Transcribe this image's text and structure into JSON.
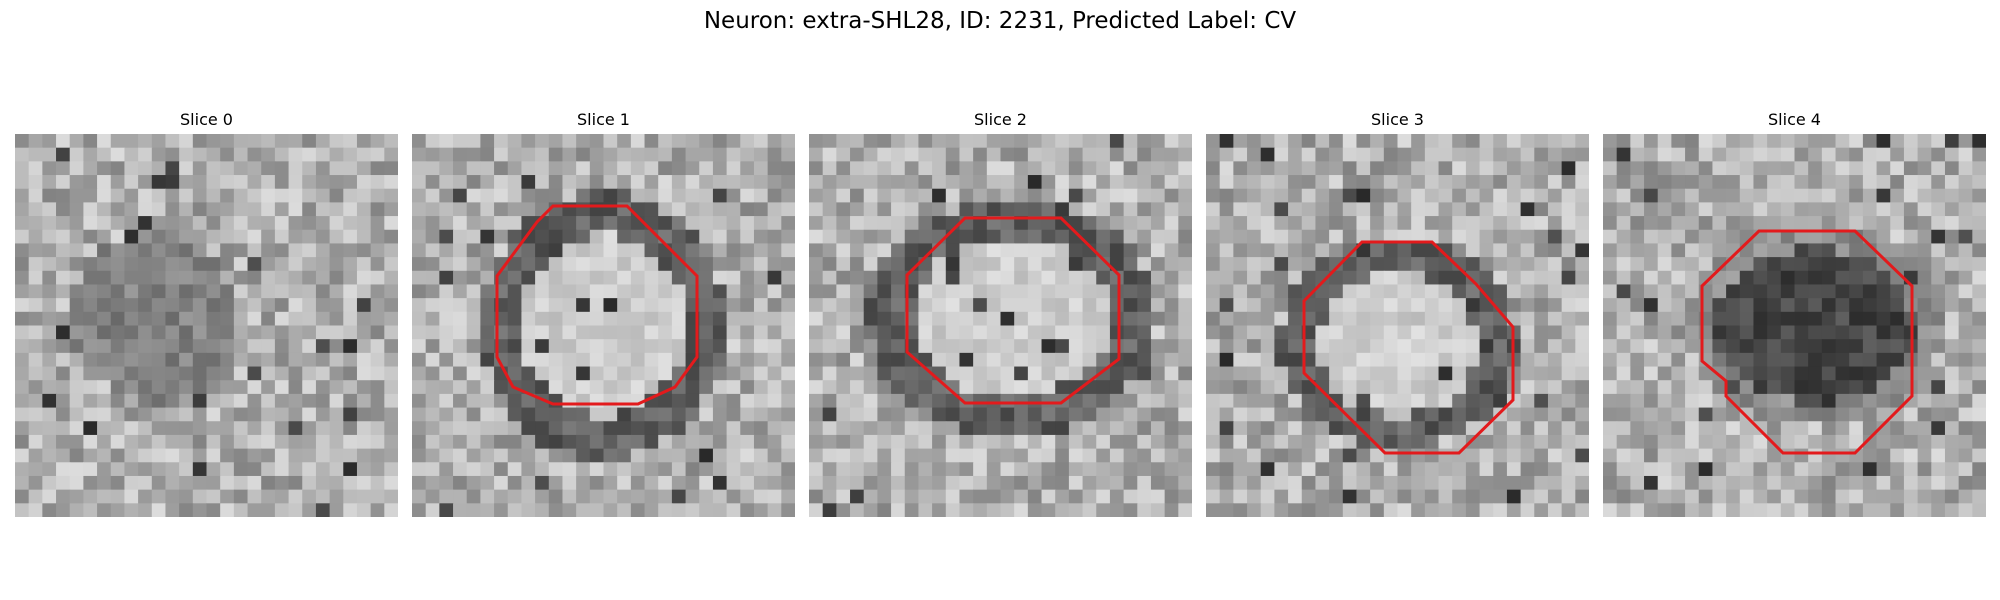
{
  "figure": {
    "title": "Neuron: extra-SHL28, ID: 2231, Predicted Label: CV"
  },
  "panels": [
    {
      "title": "Slice 0",
      "has_contour": false,
      "contour_color": "#e31a1c"
    },
    {
      "title": "Slice 1",
      "has_contour": true,
      "contour_color": "#e31a1c"
    },
    {
      "title": "Slice 2",
      "has_contour": true,
      "contour_color": "#e31a1c"
    },
    {
      "title": "Slice 3",
      "has_contour": true,
      "contour_color": "#e31a1c"
    },
    {
      "title": "Slice 4",
      "has_contour": true,
      "contour_color": "#e31a1c"
    }
  ],
  "colormap": "gray"
}
